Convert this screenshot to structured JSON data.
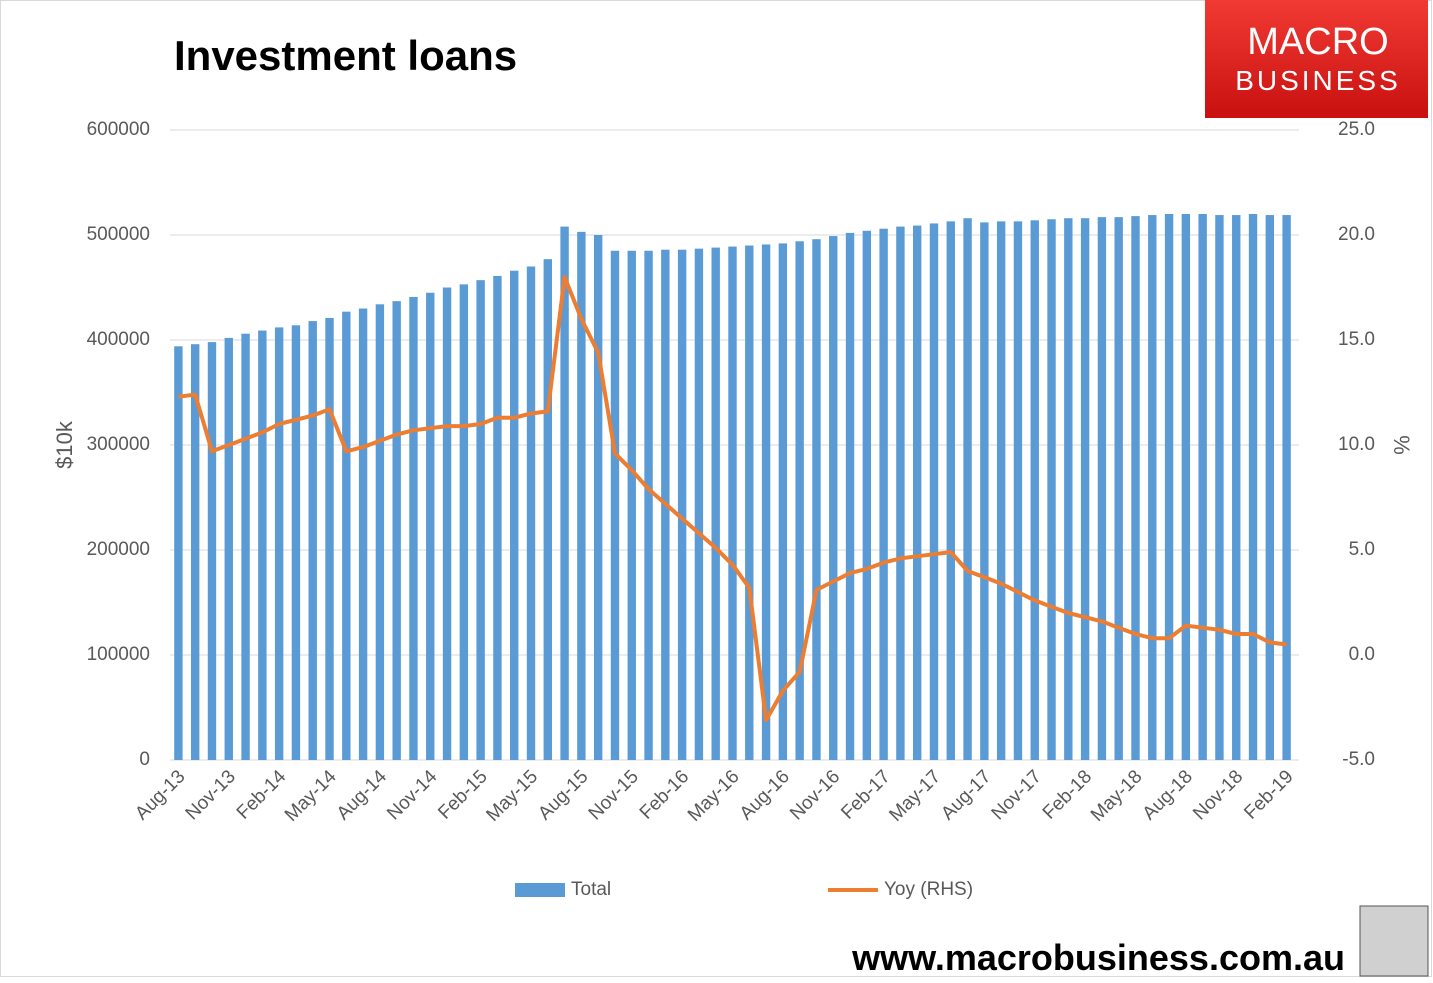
{
  "chart_data": {
    "type": "bar",
    "title": "Investment loans",
    "y_label": "$10k",
    "y2_label": "%",
    "logo": [
      "MACRO",
      "BUSINESS"
    ],
    "website": "www.macrobusiness.com.au",
    "categories": [
      "Aug-13",
      null,
      null,
      "Nov-13",
      null,
      null,
      "Feb-14",
      null,
      null,
      "May-14",
      null,
      null,
      "Aug-14",
      null,
      null,
      "Nov-14",
      null,
      null,
      "Feb-15",
      null,
      null,
      "May-15",
      null,
      null,
      "Aug-15",
      null,
      null,
      "Nov-15",
      null,
      null,
      "Feb-16",
      null,
      null,
      "May-16",
      null,
      null,
      "Aug-16",
      null,
      null,
      "Nov-16",
      null,
      null,
      "Feb-17",
      null,
      null,
      "May-17",
      null,
      null,
      "Aug-17",
      null,
      null,
      "Nov-17",
      null,
      null,
      "Feb-18",
      null,
      null,
      "May-18",
      null,
      null,
      "Aug-18",
      null,
      null,
      "Nov-18",
      null,
      null,
      "Feb-19"
    ],
    "series": [
      {
        "name": "Total",
        "type": "bar",
        "color": "#5b9bd5",
        "values": [
          394000,
          396000,
          398000,
          402000,
          406000,
          409000,
          412000,
          414000,
          418000,
          421000,
          427000,
          430000,
          434000,
          437000,
          441000,
          445000,
          450000,
          453000,
          457000,
          461000,
          466000,
          470000,
          477000,
          508000,
          503000,
          500000,
          485000,
          485000,
          485000,
          486000,
          486000,
          487000,
          488000,
          489000,
          490000,
          491000,
          492000,
          494000,
          496000,
          499000,
          502000,
          504000,
          506000,
          508000,
          509000,
          511000,
          513000,
          516000,
          512000,
          513000,
          513000,
          514000,
          515000,
          516000,
          516000,
          517000,
          517000,
          518000,
          519000,
          520000,
          520000,
          520000,
          519000,
          519000,
          520000,
          519000,
          519000
        ]
      },
      {
        "name": "Yoy (RHS)",
        "type": "line",
        "axis": "y2",
        "color": "#ed7d31",
        "values": [
          12.3,
          12.4,
          9.7,
          10.0,
          10.3,
          10.6,
          11.0,
          11.2,
          11.4,
          11.7,
          9.7,
          9.9,
          10.2,
          10.5,
          10.7,
          10.8,
          10.9,
          10.9,
          11.0,
          11.3,
          11.3,
          11.5,
          11.6,
          18.0,
          16.0,
          14.4,
          9.6,
          8.8,
          7.9,
          7.2,
          6.5,
          5.8,
          5.1,
          4.3,
          3.2,
          -3.1,
          -1.7,
          -0.8,
          3.1,
          3.5,
          3.9,
          4.1,
          4.4,
          4.6,
          4.7,
          4.8,
          4.9,
          4.0,
          3.7,
          3.4,
          3.0,
          2.6,
          2.3,
          2.0,
          1.8,
          1.6,
          1.3,
          1.0,
          0.8,
          0.8,
          1.4,
          1.3,
          1.2,
          1.0,
          1.0,
          0.6,
          0.5
        ]
      }
    ],
    "ylim": [
      0,
      600000
    ],
    "yticks": [
      0,
      100000,
      200000,
      300000,
      400000,
      500000,
      600000
    ],
    "y2lim": [
      -5,
      25
    ],
    "y2ticks": [
      {
        "value": -5,
        "label": "-5.0"
      },
      {
        "value": 0,
        "label": "0.0"
      },
      {
        "value": 5,
        "label": "5.0"
      },
      {
        "value": 10,
        "label": "10.0"
      },
      {
        "value": 15,
        "label": "15.0"
      },
      {
        "value": 20,
        "label": "20.0"
      },
      {
        "value": 25,
        "label": "25.0"
      }
    ],
    "grid": true
  }
}
